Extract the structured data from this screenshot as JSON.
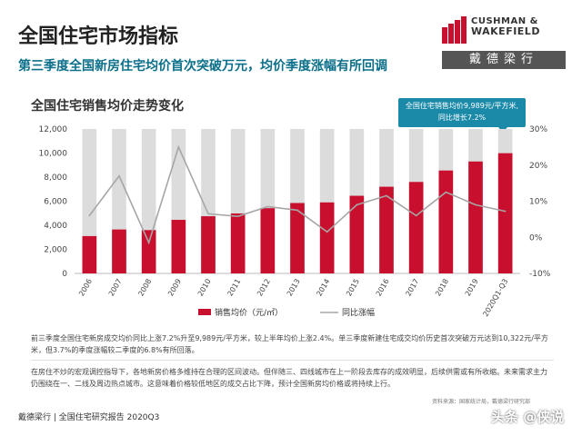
{
  "header": {
    "title": "全国住宅市场指标",
    "subtitle": "第三季度全国新房住宅均价首次突破万元，均价季度涨幅有所回调"
  },
  "logo": {
    "line1": "CUSHMAN &",
    "line2": "WAKEFIELD",
    "cn": "戴德梁行",
    "accent_color": "#c8102e"
  },
  "chart_data": {
    "type": "bar",
    "title": "全国住宅销售均价走势变化",
    "categories": [
      "2006",
      "2007",
      "2008",
      "2009",
      "2010",
      "2011",
      "2012",
      "2013",
      "2014",
      "2015",
      "2016",
      "2017",
      "2018",
      "2019",
      "2020Q1-Q3"
    ],
    "series": [
      {
        "name": "销售均价（元/㎡）",
        "type": "bar",
        "axis": "left",
        "color": "#c8102e",
        "values": [
          3100,
          3650,
          3600,
          4450,
          4750,
          4980,
          5420,
          5850,
          5900,
          6450,
          7200,
          7600,
          8550,
          9300,
          9989
        ]
      },
      {
        "name": "同比涨幅",
        "type": "line",
        "axis": "right",
        "color": "#a6a6a6",
        "values": [
          6.0,
          17.0,
          -1.5,
          25.0,
          6.5,
          5.8,
          8.5,
          7.5,
          1.5,
          9.0,
          11.5,
          6.0,
          12.5,
          9.0,
          7.2
        ]
      }
    ],
    "left_axis": {
      "min": 0,
      "max": 12000,
      "ticks": [
        0,
        2000,
        4000,
        6000,
        8000,
        10000,
        12000
      ],
      "tick_labels": [
        "0",
        "2,000",
        "4,000",
        "6,000",
        "8,000",
        "10,000",
        "12,000"
      ]
    },
    "right_axis": {
      "min": -10,
      "max": 30,
      "ticks": [
        -10,
        0,
        10,
        20,
        30
      ],
      "tick_labels": [
        "-10%",
        "0%",
        "10%",
        "20%",
        "30%"
      ]
    },
    "background_bar_color": "#dcdcdc",
    "legend_position": "bottom",
    "callout": {
      "line1": "全国住宅销售均价9,989元/平方米,",
      "line2": "同比增长7.2%"
    }
  },
  "notes": {
    "p1": "前三季度全国住宅新房成交均价同比上涨7.2%升至9,989元/平方米，较上半年均价上涨2.4%。单三季度新建住宅成交均价历史首次突破万元达到10,322元/平方米，但3.7%的季度涨幅较二季度的6.8%有所回落。",
    "p2": "在房住不炒的宏观调控指导下，各地新房价格多维持在合理的区间波动。但伴随三、四线城市在上一阶段去库存的成效明显，后续供需或有所收缩。未来需求主力仍围绕在一、二线及周边热点城市。这意味着价格较低地区的成交占比下降，预计全国新房均价格或将持续上行。",
    "source": "资料来源：国家统计局，戴德梁行研究部"
  },
  "footer": {
    "text": "戴德梁行  |  全国住宅研究报告 2020Q3",
    "watermark": "头条 @侠说"
  }
}
